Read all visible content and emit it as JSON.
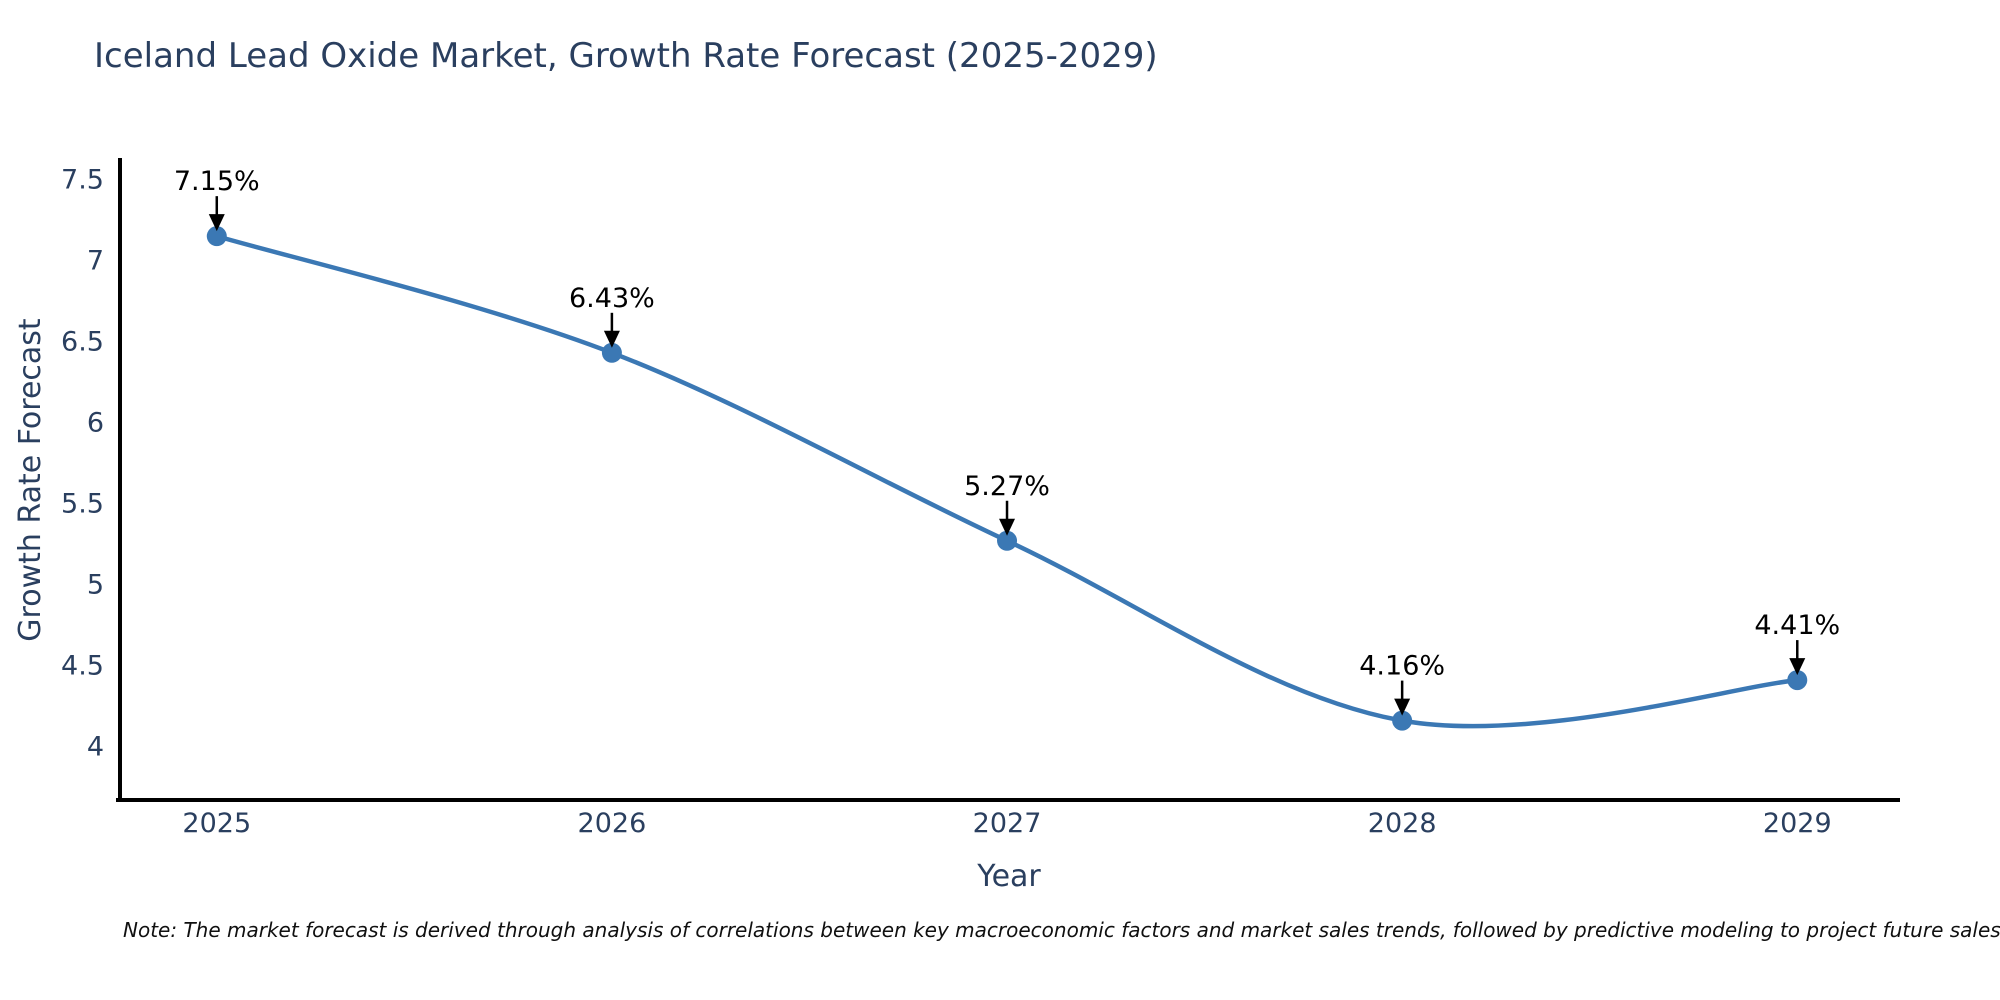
{
  "chart_data": {
    "type": "line",
    "title": "Iceland Lead Oxide Market, Growth Rate Forecast (2025-2029)",
    "xlabel": "Year",
    "ylabel": "Growth Rate Forecast",
    "categories": [
      "2025",
      "2026",
      "2027",
      "2028",
      "2029"
    ],
    "x": [
      2025,
      2026,
      2027,
      2028,
      2029
    ],
    "series": [
      {
        "name": "Growth Rate Forecast",
        "values": [
          7.15,
          6.43,
          5.27,
          4.16,
          4.41
        ]
      }
    ],
    "point_labels": [
      "7.15%",
      "6.43%",
      "5.27%",
      "4.16%",
      "4.41%"
    ],
    "y_ticks": [
      4,
      4.5,
      5,
      5.5,
      6,
      6.5,
      7,
      7.5
    ],
    "y_tick_labels": [
      "4",
      "4.5",
      "5",
      "5.5",
      "6",
      "6.5",
      "7",
      "7.5"
    ],
    "xlim": [
      2024.75,
      2029.26
    ],
    "ylim": [
      3.67,
      7.62
    ],
    "line_shape": "spline",
    "grid": false,
    "legend": "none",
    "colors": {
      "line": "#3b78b4",
      "marker": "#3b78b4",
      "axis": "#000000",
      "text": "#2a3f5f",
      "annotation": "#000000"
    }
  },
  "note": {
    "text": "Note: The market forecast is derived through analysis of correlations between key macroeconomic factors and market sales trends, followed by predictive modeling to project future sales"
  }
}
